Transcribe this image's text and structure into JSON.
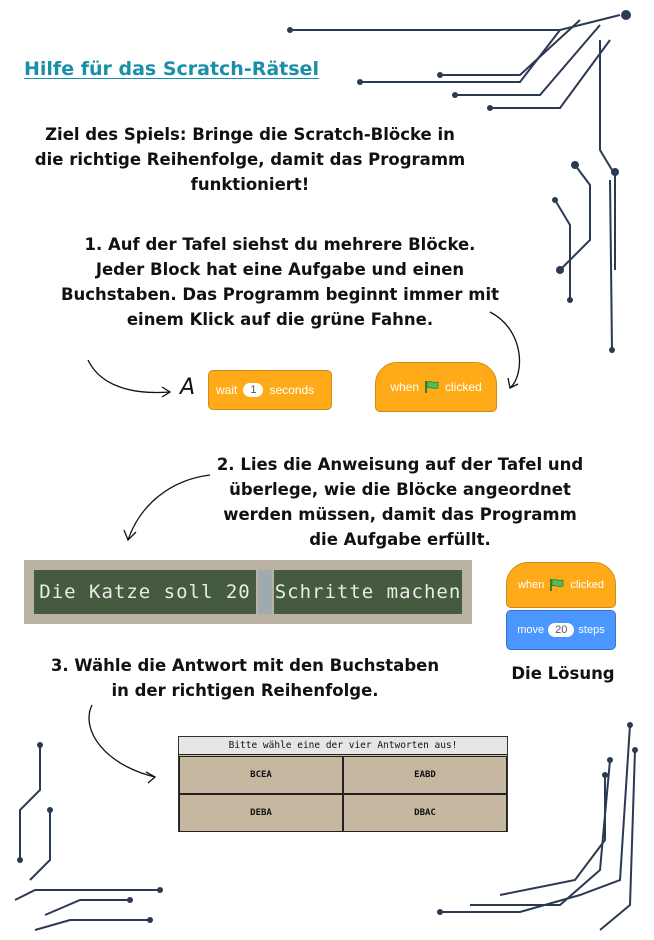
{
  "title": "Hilfe für das Scratch-Rätsel",
  "goal": "Ziel des Spiels: Bringe die Scratch-Blöcke in die richtige Reihenfolge, damit das Programm funktioniert!",
  "step1": "1.  Auf der Tafel siehst du mehrere Blöcke. Jeder Block hat eine Aufgabe und einen Buchstaben. Das Programm beginnt immer mit einem Klick auf die grüne Fahne.",
  "example": {
    "letter": "A",
    "wait_block": {
      "word1": "wait",
      "value": "1",
      "word2": "seconds"
    },
    "hat_block": {
      "word1": "when",
      "word2": "clicked",
      "icon": "green-flag-icon"
    }
  },
  "step2": "2. Lies die Anweisung auf der Tafel und überlege, wie die Blöcke angeordnet werden müssen, damit das Programm die Aufgabe erfüllt.",
  "board": {
    "left_text": "Die Katze soll 20",
    "right_text": "Schritte machen"
  },
  "solution": {
    "hat": {
      "word1": "when",
      "word2": "clicked"
    },
    "move": {
      "word1": "move",
      "value": "20",
      "word2": "steps"
    },
    "label": "Die Lösung"
  },
  "step3": "3. Wähle die Antwort mit den Buchstaben in der richtigen Reihenfolge.",
  "quiz": {
    "header": "Bitte wähle eine der vier Antworten aus!",
    "options": [
      "BCEA",
      "EABD",
      "DEBA",
      "DBAC"
    ]
  },
  "colors": {
    "title": "#1a8fa8",
    "control_block": "#ffab19",
    "motion_block": "#4c97ff",
    "chalkboard": "#455a3e",
    "circuit": "#2b3a52"
  }
}
